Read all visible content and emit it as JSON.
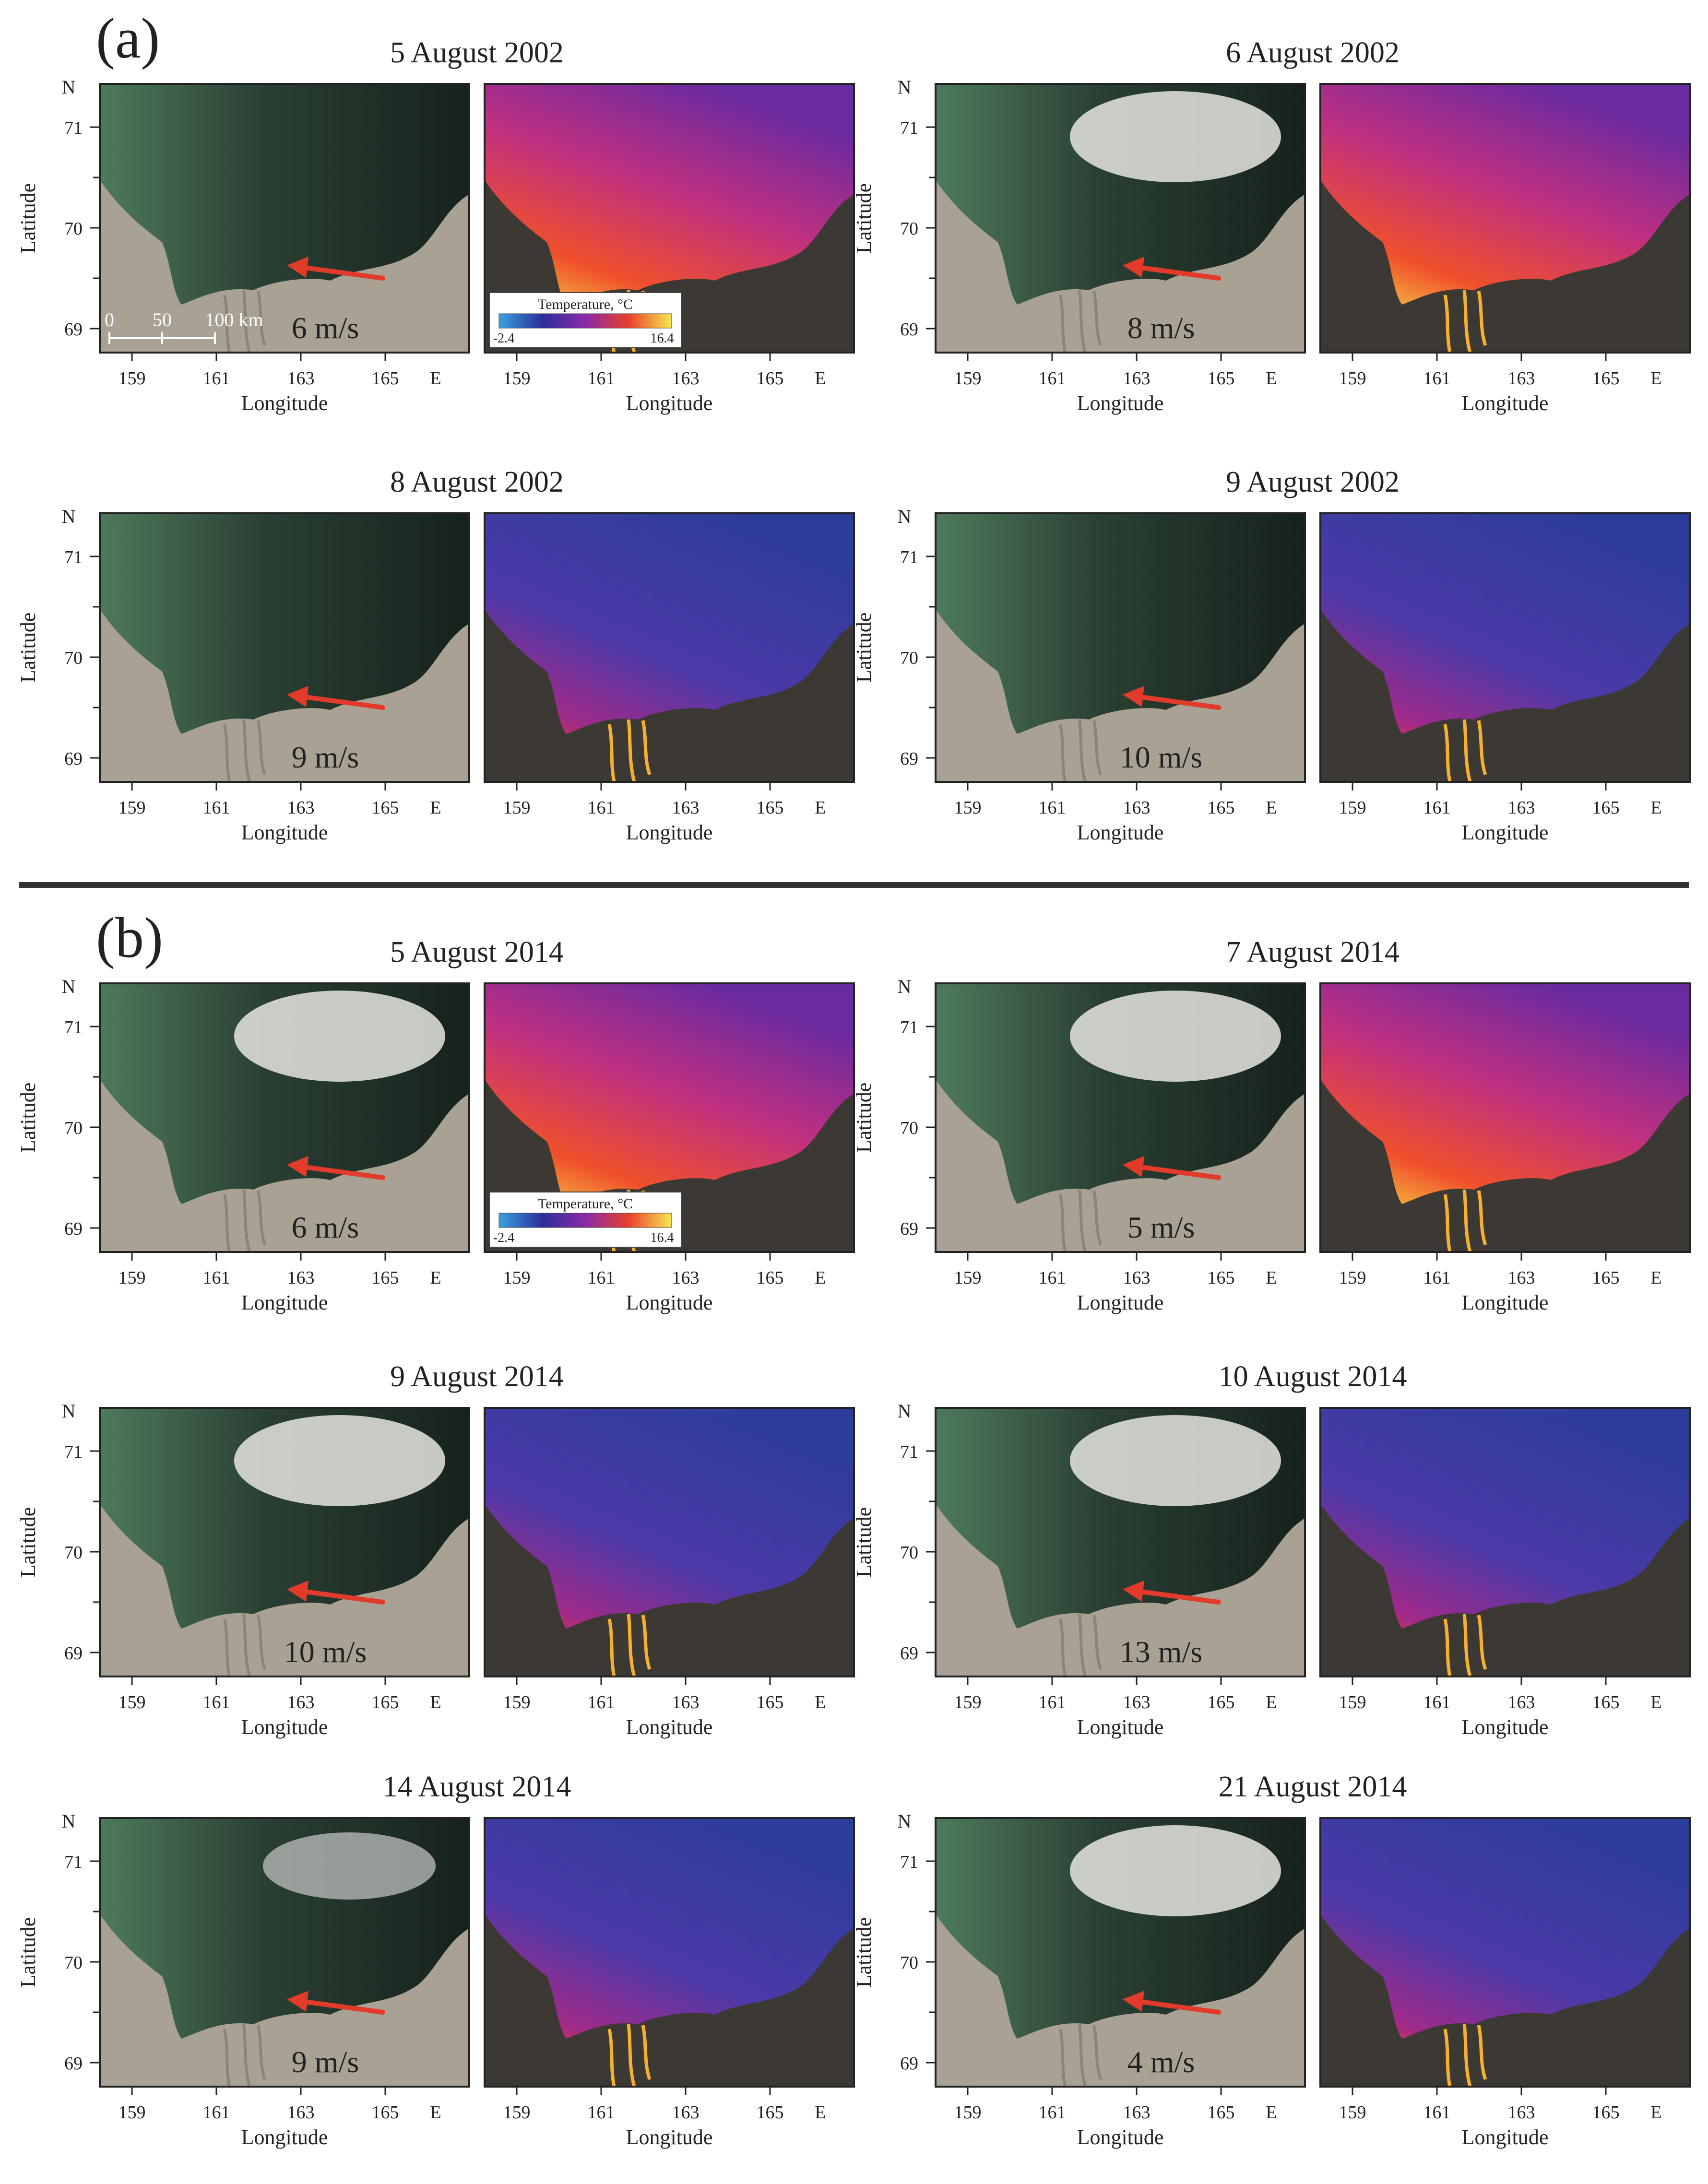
{
  "figure": {
    "section_a": {
      "label": "(a)",
      "panels": [
        {
          "date": "5 August 2002",
          "wind": "6 m/s"
        },
        {
          "date": "6 August 2002",
          "wind": "8 m/s"
        },
        {
          "date": "8 August 2002",
          "wind": "9 m/s"
        },
        {
          "date": "9 August 2002",
          "wind": "10 m/s"
        }
      ]
    },
    "section_b": {
      "label": "(b)",
      "panels": [
        {
          "date": "5 August 2014",
          "wind": "6 m/s"
        },
        {
          "date": "7 August 2014",
          "wind": "5 m/s"
        },
        {
          "date": "9 August 2014",
          "wind": "10 m/s"
        },
        {
          "date": "10 August 2014",
          "wind": "13 m/s"
        },
        {
          "date": "14 August 2014",
          "wind": "9 m/s"
        },
        {
          "date": "21 August 2014",
          "wind": "4 m/s"
        }
      ]
    }
  },
  "axes": {
    "north": "N",
    "east": "E",
    "latitude_label": "Latitude",
    "longitude_label": "Longitude",
    "lat_ticks": [
      "71",
      "70",
      "69"
    ],
    "lon_ticks": [
      "159",
      "161",
      "163",
      "165"
    ]
  },
  "scale_bar": {
    "labels": [
      "0",
      "50",
      "100 km"
    ]
  },
  "colorbar": {
    "title": "Temperature, °C",
    "min": "-2.4",
    "max": "16.4"
  },
  "colors": {
    "land": "#a9a294",
    "sea_dark": "#1d2a22",
    "arrow": "#e23b2c",
    "sst_land": "#3c3833",
    "divider": "#333333"
  }
}
